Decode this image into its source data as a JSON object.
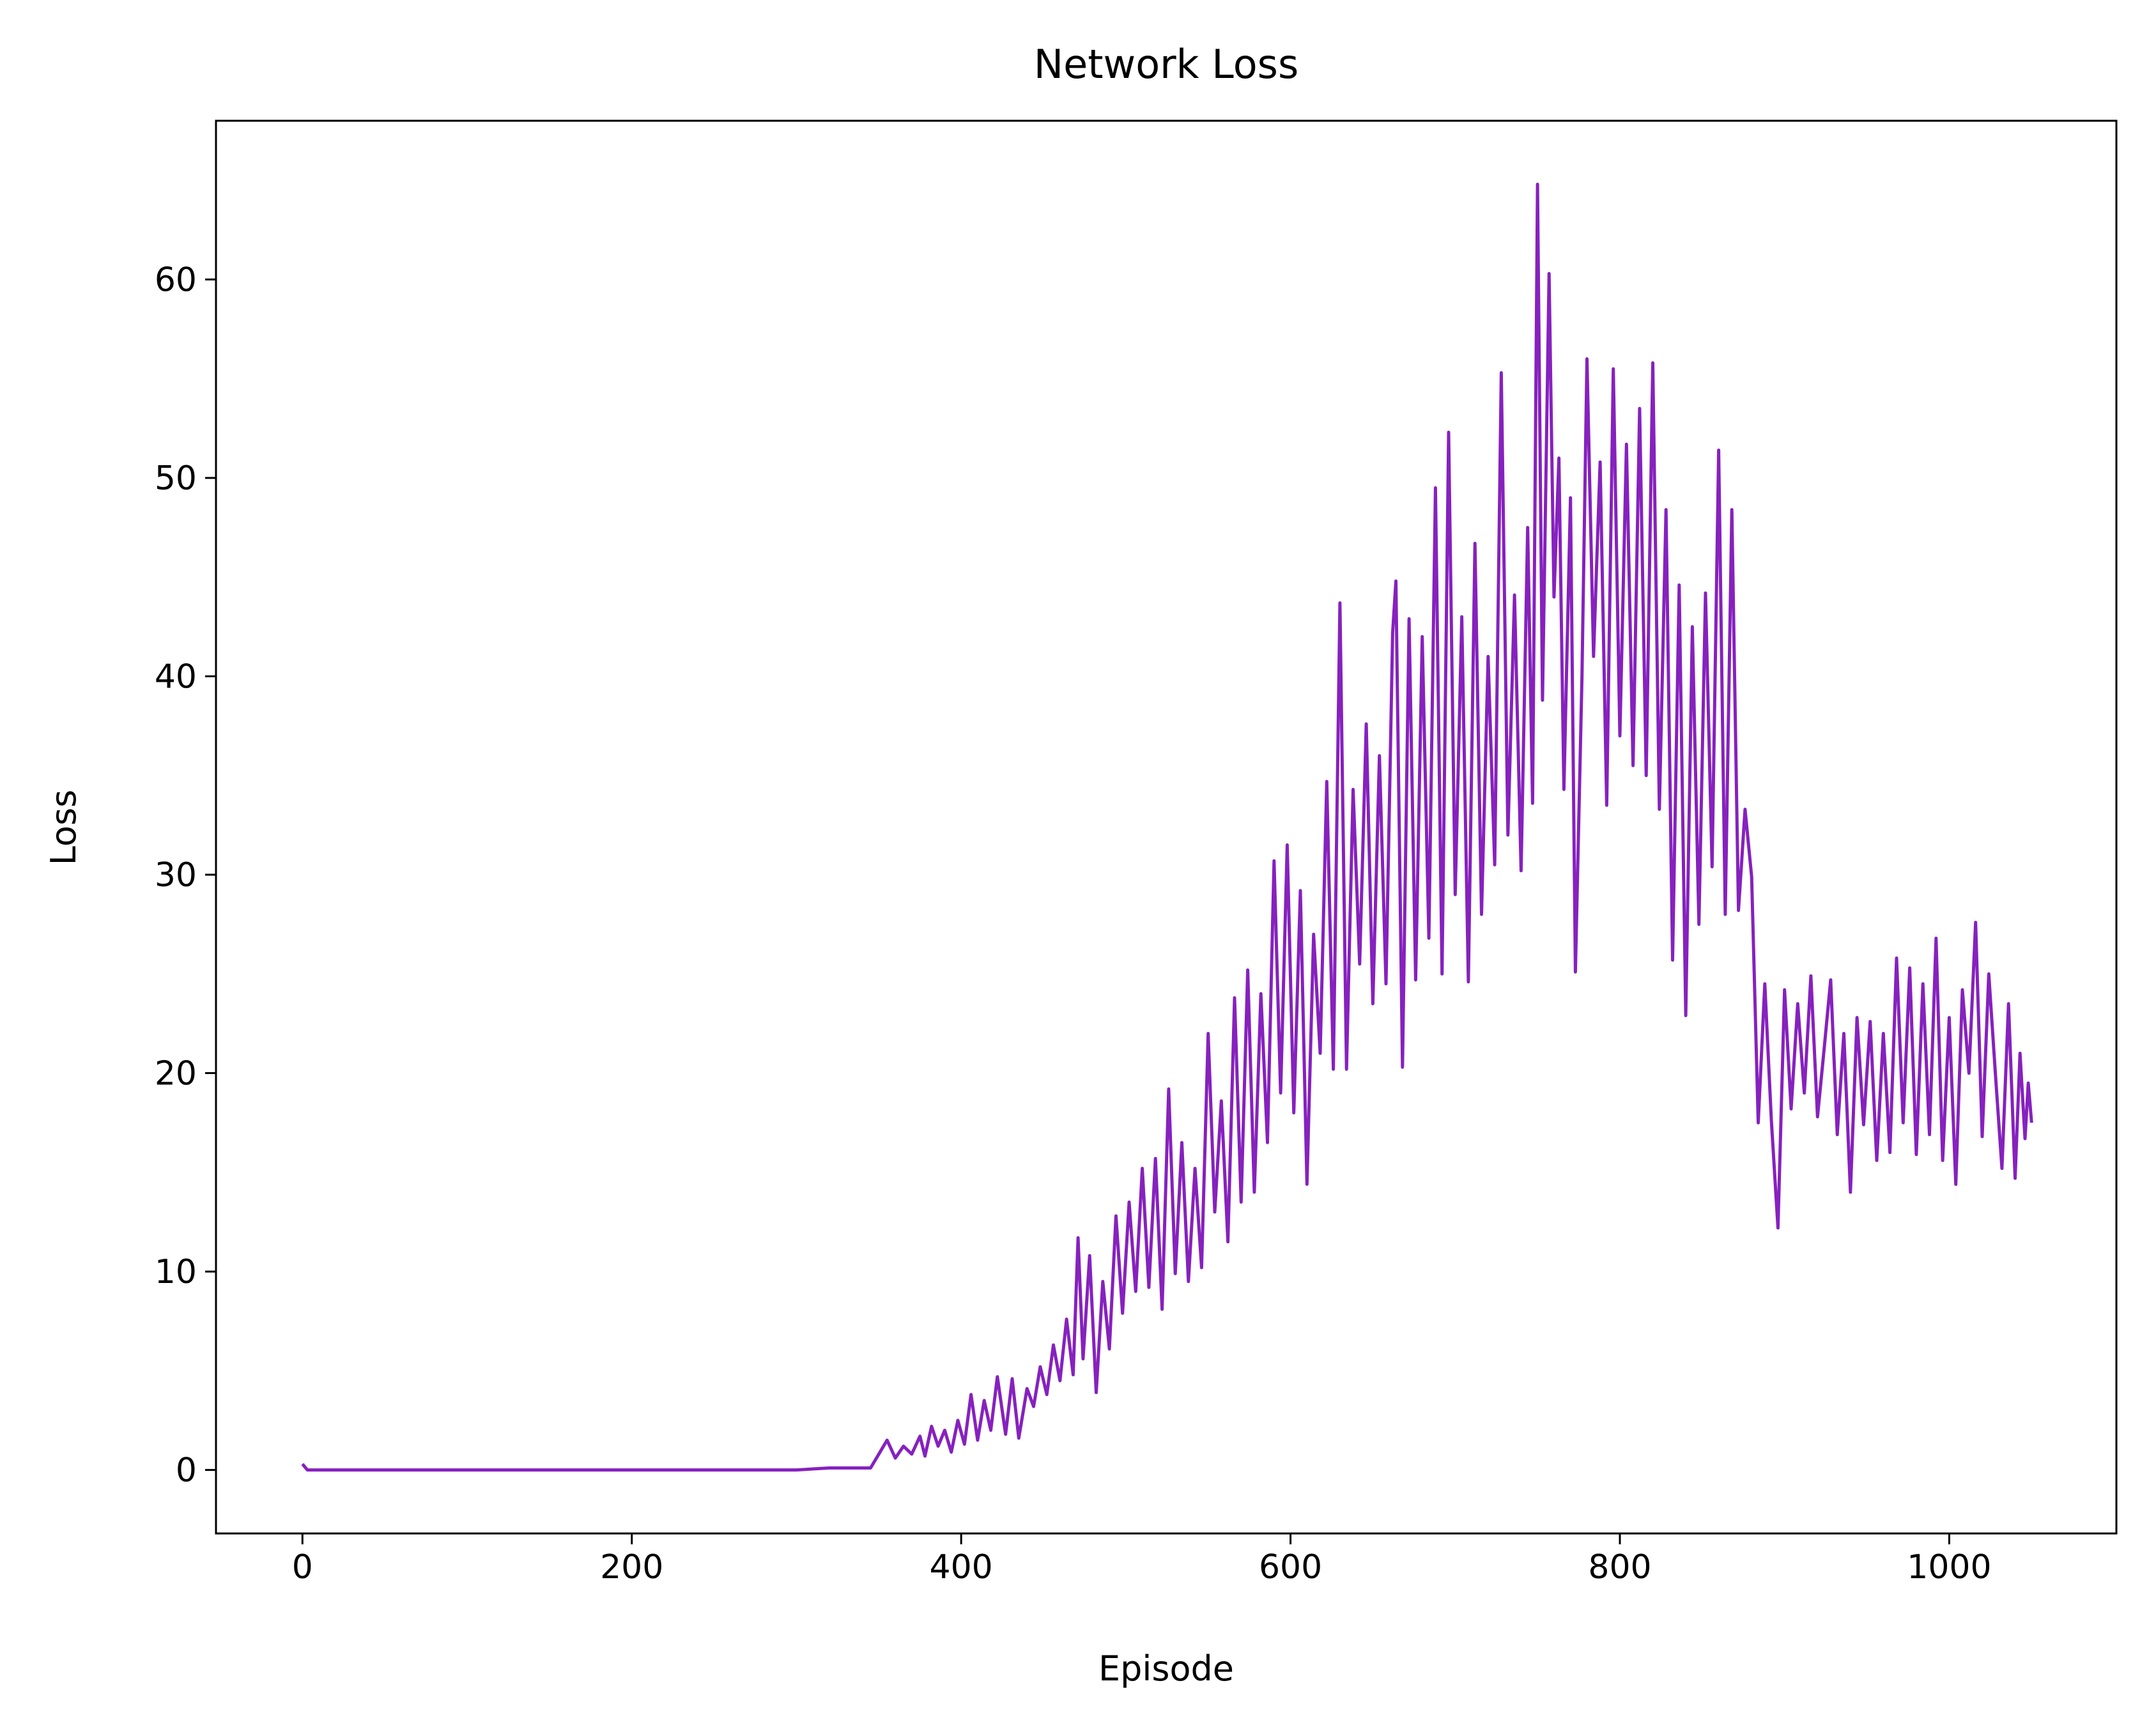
{
  "chart_data": {
    "type": "line",
    "title": "Network Loss",
    "xlabel": "Episode",
    "ylabel": "Loss",
    "color": "#8621be",
    "xlim": [
      -52.5,
      1101.5
    ],
    "ylim": [
      -3.2,
      68.0
    ],
    "xticks": [
      0,
      200,
      400,
      600,
      800,
      1000
    ],
    "yticks": [
      0,
      10,
      20,
      30,
      40,
      50,
      60
    ],
    "x": [
      0,
      3,
      300,
      320,
      345,
      350,
      355,
      360,
      365,
      370,
      375,
      378,
      382,
      386,
      390,
      394,
      398,
      402,
      406,
      410,
      414,
      418,
      422,
      427,
      431,
      435,
      440,
      444,
      448,
      452,
      456,
      460,
      464,
      468,
      471,
      474,
      478,
      482,
      486,
      490,
      494,
      498,
      502,
      506,
      510,
      514,
      518,
      522,
      526,
      530,
      534,
      538,
      542,
      546,
      550,
      554,
      558,
      562,
      566,
      570,
      574,
      578,
      582,
      586,
      590,
      594,
      598,
      602,
      606,
      610,
      614,
      618,
      622,
      626,
      630,
      634,
      638,
      642,
      646,
      650,
      654,
      658,
      662,
      664,
      668,
      672,
      676,
      680,
      684,
      688,
      692,
      696,
      700,
      704,
      708,
      712,
      716,
      720,
      724,
      728,
      732,
      736,
      740,
      744,
      747,
      750,
      753,
      757,
      760,
      763,
      766,
      770,
      773,
      777,
      780,
      784,
      788,
      792,
      796,
      800,
      804,
      808,
      812,
      816,
      820,
      824,
      828,
      832,
      836,
      840,
      844,
      848,
      852,
      856,
      860,
      864,
      868,
      872,
      876,
      880,
      884,
      888,
      892,
      896,
      900,
      904,
      908,
      912,
      916,
      920,
      924,
      928,
      932,
      936,
      940,
      944,
      948,
      952,
      956,
      960,
      964,
      968,
      972,
      976,
      980,
      984,
      988,
      992,
      996,
      1000,
      1004,
      1008,
      1012,
      1016,
      1020,
      1024,
      1028,
      1032,
      1036,
      1040,
      1043,
      1046,
      1048,
      1050
    ],
    "values": [
      0.3,
      0,
      0,
      0.1,
      0.1,
      0.8,
      1.5,
      0.6,
      1.2,
      0.8,
      1.7,
      0.7,
      2.2,
      1.2,
      2.0,
      0.9,
      2.5,
      1.3,
      3.8,
      1.5,
      3.5,
      2.0,
      4.7,
      1.8,
      4.6,
      1.6,
      4.1,
      3.2,
      5.2,
      3.8,
      6.3,
      4.5,
      7.6,
      4.8,
      11.7,
      5.6,
      10.8,
      3.9,
      9.5,
      6.1,
      12.8,
      7.9,
      13.5,
      9.0,
      15.2,
      9.2,
      15.7,
      8.1,
      19.2,
      9.9,
      16.5,
      9.5,
      15.2,
      10.2,
      22.0,
      13.0,
      18.6,
      11.5,
      23.8,
      13.5,
      25.2,
      14.0,
      24.0,
      16.5,
      30.7,
      19.0,
      31.5,
      18.0,
      29.2,
      14.4,
      27.0,
      21.0,
      34.7,
      20.2,
      43.7,
      20.2,
      34.3,
      25.5,
      37.6,
      23.5,
      36.0,
      24.5,
      42.2,
      44.8,
      20.3,
      42.9,
      24.7,
      42.0,
      26.8,
      49.5,
      25.0,
      52.3,
      29.0,
      43.0,
      24.6,
      46.7,
      28.0,
      41.0,
      30.5,
      55.3,
      32.0,
      44.1,
      30.2,
      47.5,
      33.6,
      64.8,
      38.8,
      60.3,
      44.0,
      51.0,
      34.3,
      49.0,
      25.1,
      40.0,
      56.0,
      41.0,
      50.8,
      33.5,
      55.5,
      37.0,
      51.7,
      35.5,
      53.5,
      35.0,
      55.8,
      33.3,
      48.4,
      25.7,
      44.6,
      22.9,
      42.5,
      27.5,
      44.2,
      30.4,
      51.4,
      28.0,
      48.4,
      28.2,
      33.3,
      29.9,
      17.5,
      24.5,
      17.6,
      12.2,
      24.2,
      18.2,
      23.5,
      19.0,
      24.9,
      17.8,
      21.2,
      24.7,
      16.9,
      22.0,
      14.0,
      22.8,
      17.4,
      22.6,
      15.6,
      22.0,
      16.0,
      25.8,
      17.5,
      25.3,
      15.9,
      24.5,
      16.9,
      26.8,
      15.6,
      22.8,
      14.4,
      24.2,
      20.0,
      27.6,
      16.8,
      25.0,
      20.0,
      15.2,
      23.5,
      14.7,
      21.0,
      16.7,
      19.5,
      17.5
    ]
  }
}
